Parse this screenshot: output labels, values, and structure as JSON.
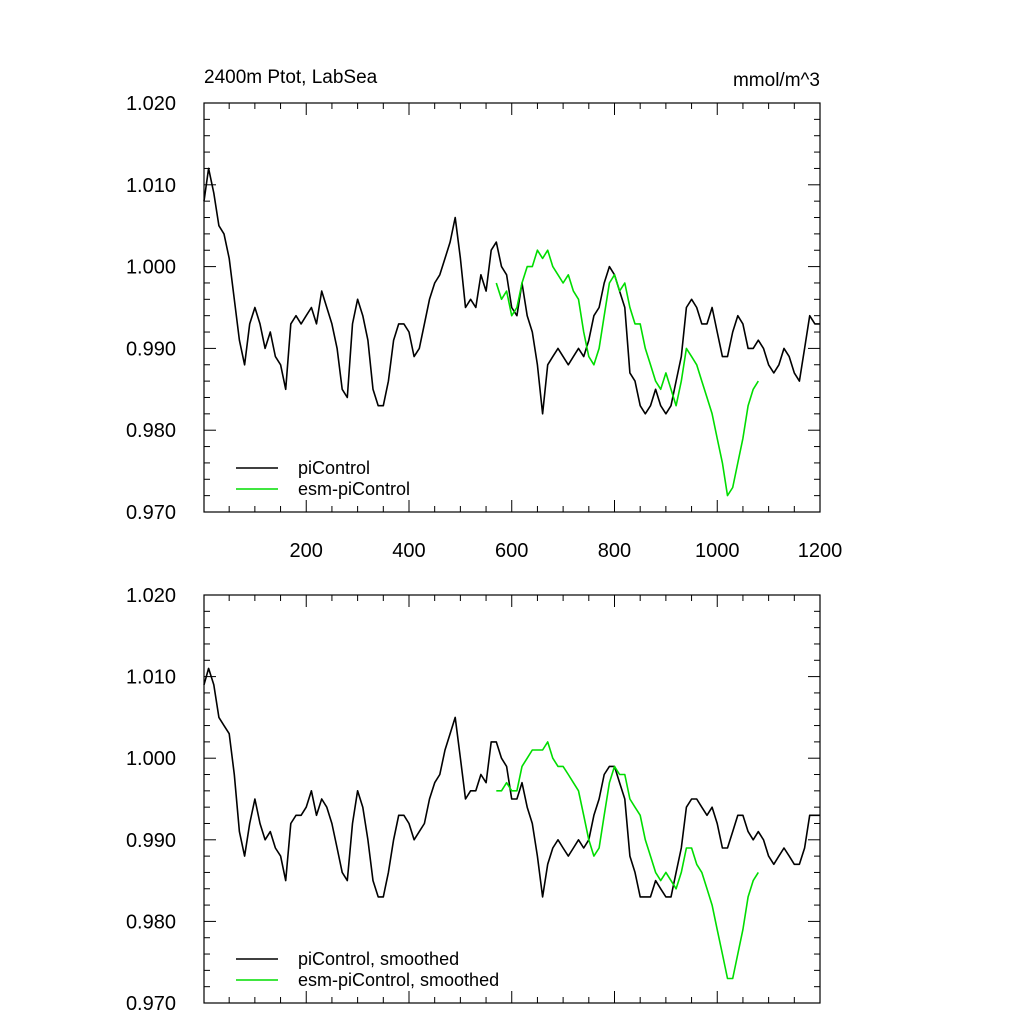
{
  "figure": {
    "title_left": "2400m Ptot, LabSea",
    "title_right": "mmol/m^3"
  },
  "chart_data": [
    {
      "type": "line",
      "title": "2400m Ptot, LabSea",
      "units": "mmol/m^3",
      "xlim": [
        1,
        1200
      ],
      "ylim": [
        0.97,
        1.02
      ],
      "x_ticks": [
        200,
        400,
        600,
        800,
        1000,
        1200
      ],
      "x_tick_labels": [
        "200",
        "400",
        "600",
        "800",
        "1000",
        "1200"
      ],
      "y_ticks": [
        0.97,
        0.98,
        0.99,
        1.0,
        1.01,
        1.02
      ],
      "y_tick_labels": [
        "0.970",
        "0.980",
        "0.990",
        "1.000",
        "1.010",
        "1.020"
      ],
      "legend_position": "bottom-left",
      "grid": false,
      "series": [
        {
          "name": "piControl",
          "color": "#000000",
          "x": [
            1,
            10,
            20,
            30,
            40,
            50,
            60,
            70,
            80,
            90,
            100,
            110,
            120,
            130,
            140,
            150,
            160,
            170,
            180,
            190,
            200,
            210,
            220,
            230,
            240,
            250,
            260,
            270,
            280,
            290,
            300,
            310,
            320,
            330,
            340,
            350,
            360,
            370,
            380,
            390,
            400,
            410,
            420,
            430,
            440,
            450,
            460,
            470,
            480,
            490,
            500,
            510,
            520,
            530,
            540,
            550,
            560,
            570,
            580,
            590,
            600,
            610,
            620,
            630,
            640,
            650,
            660,
            670,
            680,
            690,
            700,
            710,
            720,
            730,
            740,
            750,
            760,
            770,
            780,
            790,
            800,
            810,
            820,
            830,
            840,
            850,
            860,
            870,
            880,
            890,
            900,
            910,
            920,
            930,
            940,
            950,
            960,
            970,
            980,
            990,
            1000,
            1010,
            1020,
            1030,
            1040,
            1050,
            1060,
            1070,
            1080,
            1090,
            1100,
            1110,
            1120,
            1130,
            1140,
            1150,
            1160,
            1170,
            1180,
            1190,
            1200
          ],
          "y": [
            1.008,
            1.012,
            1.009,
            1.005,
            1.004,
            1.001,
            0.996,
            0.991,
            0.988,
            0.993,
            0.995,
            0.993,
            0.99,
            0.992,
            0.989,
            0.988,
            0.985,
            0.993,
            0.994,
            0.993,
            0.994,
            0.995,
            0.993,
            0.997,
            0.995,
            0.993,
            0.99,
            0.985,
            0.984,
            0.993,
            0.996,
            0.994,
            0.991,
            0.985,
            0.983,
            0.983,
            0.986,
            0.991,
            0.993,
            0.993,
            0.992,
            0.989,
            0.99,
            0.993,
            0.996,
            0.998,
            0.999,
            1.001,
            1.003,
            1.006,
            1.001,
            0.995,
            0.996,
            0.995,
            0.999,
            0.997,
            1.002,
            1.003,
            1.0,
            0.999,
            0.995,
            0.994,
            0.998,
            0.994,
            0.992,
            0.988,
            0.982,
            0.988,
            0.989,
            0.99,
            0.989,
            0.988,
            0.989,
            0.99,
            0.989,
            0.991,
            0.994,
            0.995,
            0.998,
            1.0,
            0.999,
            0.997,
            0.995,
            0.987,
            0.986,
            0.983,
            0.982,
            0.983,
            0.985,
            0.983,
            0.982,
            0.983,
            0.986,
            0.989,
            0.995,
            0.996,
            0.995,
            0.993,
            0.993,
            0.995,
            0.992,
            0.989,
            0.989,
            0.992,
            0.994,
            0.993,
            0.99,
            0.99,
            0.991,
            0.99,
            0.988,
            0.987,
            0.988,
            0.99,
            0.989,
            0.987,
            0.986,
            0.99,
            0.994,
            0.993,
            0.993
          ]
        },
        {
          "name": "esm-piControl",
          "color": "#00dd00",
          "x": [
            570,
            580,
            590,
            600,
            610,
            620,
            630,
            640,
            650,
            660,
            670,
            680,
            690,
            700,
            710,
            720,
            730,
            740,
            750,
            760,
            770,
            780,
            790,
            800,
            810,
            820,
            830,
            840,
            850,
            860,
            870,
            880,
            890,
            900,
            910,
            920,
            930,
            940,
            950,
            960,
            970,
            980,
            990,
            1000,
            1010,
            1020,
            1030,
            1040,
            1050,
            1060,
            1070,
            1080
          ],
          "y": [
            0.998,
            0.996,
            0.997,
            0.994,
            0.995,
            0.998,
            1.0,
            1.0,
            1.002,
            1.001,
            1.002,
            1.0,
            0.999,
            0.998,
            0.999,
            0.997,
            0.996,
            0.992,
            0.989,
            0.988,
            0.99,
            0.994,
            0.998,
            0.999,
            0.997,
            0.998,
            0.995,
            0.993,
            0.993,
            0.99,
            0.988,
            0.986,
            0.985,
            0.987,
            0.985,
            0.983,
            0.986,
            0.99,
            0.989,
            0.988,
            0.986,
            0.984,
            0.982,
            0.979,
            0.976,
            0.972,
            0.973,
            0.976,
            0.979,
            0.983,
            0.985,
            0.986
          ]
        }
      ]
    },
    {
      "type": "line",
      "xlim": [
        1,
        1200
      ],
      "ylim": [
        0.97,
        1.02
      ],
      "x_ticks": [
        200,
        400,
        600,
        800,
        1000,
        1200
      ],
      "y_ticks": [
        0.97,
        0.98,
        0.99,
        1.0,
        1.01,
        1.02
      ],
      "y_tick_labels": [
        "0.970",
        "0.980",
        "0.990",
        "1.000",
        "1.010",
        "1.020"
      ],
      "legend_position": "bottom-left",
      "grid": false,
      "series": [
        {
          "name": "piControl, smoothed",
          "color": "#000000",
          "x": [
            1,
            10,
            20,
            30,
            40,
            50,
            60,
            70,
            80,
            90,
            100,
            110,
            120,
            130,
            140,
            150,
            160,
            170,
            180,
            190,
            200,
            210,
            220,
            230,
            240,
            250,
            260,
            270,
            280,
            290,
            300,
            310,
            320,
            330,
            340,
            350,
            360,
            370,
            380,
            390,
            400,
            410,
            420,
            430,
            440,
            450,
            460,
            470,
            480,
            490,
            500,
            510,
            520,
            530,
            540,
            550,
            560,
            570,
            580,
            590,
            600,
            610,
            620,
            630,
            640,
            650,
            660,
            670,
            680,
            690,
            700,
            710,
            720,
            730,
            740,
            750,
            760,
            770,
            780,
            790,
            800,
            810,
            820,
            830,
            840,
            850,
            860,
            870,
            880,
            890,
            900,
            910,
            920,
            930,
            940,
            950,
            960,
            970,
            980,
            990,
            1000,
            1010,
            1020,
            1030,
            1040,
            1050,
            1060,
            1070,
            1080,
            1090,
            1100,
            1110,
            1120,
            1130,
            1140,
            1150,
            1160,
            1170,
            1180,
            1190,
            1200
          ],
          "y": [
            1.009,
            1.011,
            1.009,
            1.005,
            1.004,
            1.003,
            0.998,
            0.991,
            0.988,
            0.992,
            0.995,
            0.992,
            0.99,
            0.991,
            0.989,
            0.988,
            0.985,
            0.992,
            0.993,
            0.993,
            0.994,
            0.996,
            0.993,
            0.995,
            0.994,
            0.992,
            0.989,
            0.986,
            0.985,
            0.992,
            0.996,
            0.994,
            0.99,
            0.985,
            0.983,
            0.983,
            0.986,
            0.99,
            0.993,
            0.993,
            0.992,
            0.99,
            0.991,
            0.992,
            0.995,
            0.997,
            0.998,
            1.001,
            1.003,
            1.005,
            1.0,
            0.995,
            0.996,
            0.996,
            0.998,
            0.997,
            1.002,
            1.002,
            1.0,
            0.999,
            0.995,
            0.995,
            0.997,
            0.994,
            0.992,
            0.988,
            0.983,
            0.987,
            0.989,
            0.99,
            0.989,
            0.988,
            0.989,
            0.99,
            0.989,
            0.99,
            0.993,
            0.995,
            0.998,
            0.999,
            0.999,
            0.997,
            0.995,
            0.988,
            0.986,
            0.983,
            0.983,
            0.983,
            0.985,
            0.984,
            0.983,
            0.983,
            0.986,
            0.989,
            0.994,
            0.995,
            0.995,
            0.994,
            0.993,
            0.994,
            0.992,
            0.989,
            0.989,
            0.991,
            0.993,
            0.993,
            0.991,
            0.99,
            0.991,
            0.99,
            0.988,
            0.987,
            0.988,
            0.989,
            0.988,
            0.987,
            0.987,
            0.989,
            0.993,
            0.993,
            0.993
          ]
        },
        {
          "name": "esm-piControl, smoothed",
          "color": "#00dd00",
          "x": [
            570,
            580,
            590,
            600,
            610,
            620,
            630,
            640,
            650,
            660,
            670,
            680,
            690,
            700,
            710,
            720,
            730,
            740,
            750,
            760,
            770,
            780,
            790,
            800,
            810,
            820,
            830,
            840,
            850,
            860,
            870,
            880,
            890,
            900,
            910,
            920,
            930,
            940,
            950,
            960,
            970,
            980,
            990,
            1000,
            1010,
            1020,
            1030,
            1040,
            1050,
            1060,
            1070,
            1080
          ],
          "y": [
            0.996,
            0.996,
            0.997,
            0.996,
            0.996,
            0.999,
            1.0,
            1.001,
            1.001,
            1.001,
            1.002,
            1.0,
            0.999,
            0.999,
            0.998,
            0.997,
            0.996,
            0.993,
            0.99,
            0.988,
            0.989,
            0.993,
            0.997,
            0.999,
            0.998,
            0.998,
            0.995,
            0.994,
            0.993,
            0.99,
            0.988,
            0.986,
            0.985,
            0.986,
            0.985,
            0.984,
            0.986,
            0.989,
            0.989,
            0.987,
            0.986,
            0.984,
            0.982,
            0.979,
            0.976,
            0.973,
            0.973,
            0.976,
            0.979,
            0.983,
            0.985,
            0.986
          ]
        }
      ]
    }
  ]
}
